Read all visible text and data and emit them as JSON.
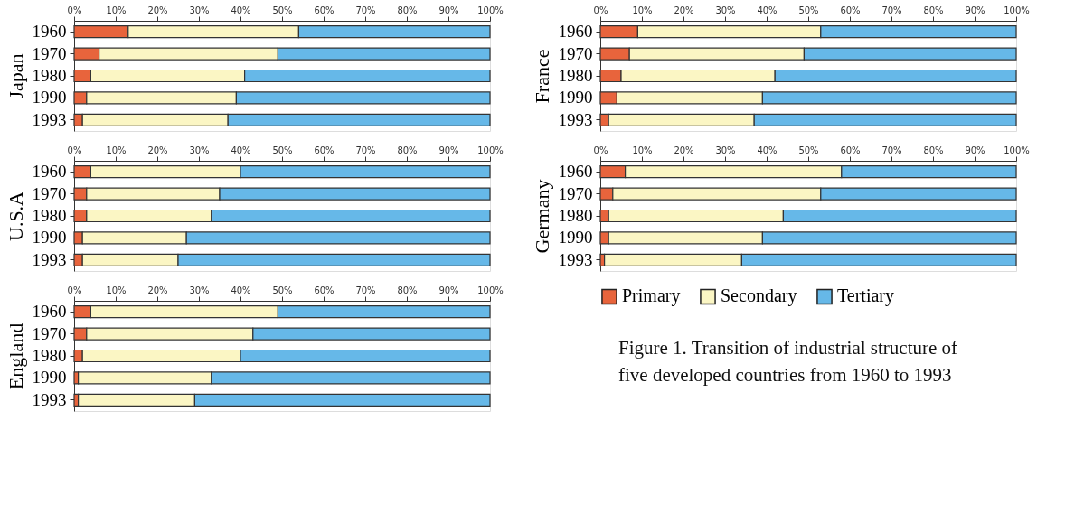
{
  "chart_data": [
    {
      "type": "bar",
      "orientation": "horizontal",
      "stacked": true,
      "ylabel": "Japan",
      "categories": [
        "1960",
        "1970",
        "1980",
        "1990",
        "1993"
      ],
      "xlim": [
        0,
        100
      ],
      "xticks": [
        {
          "value": 0,
          "label": "0%"
        },
        {
          "value": 10,
          "label": "10%"
        },
        {
          "value": 20,
          "label": "20%"
        },
        {
          "value": 30,
          "label": "30%"
        },
        {
          "value": 40,
          "label": "40%"
        },
        {
          "value": 50,
          "label": "50%"
        },
        {
          "value": 60,
          "label": "60%"
        },
        {
          "value": 70,
          "label": "70%"
        },
        {
          "value": 80,
          "label": "80%"
        },
        {
          "value": 90,
          "label": "90%"
        },
        {
          "value": 100,
          "label": "100%"
        }
      ],
      "grid": false,
      "legend": false,
      "series": [
        {
          "color": "#e8643c",
          "values": [
            13,
            6,
            4,
            3,
            2
          ]
        },
        {
          "color": "#fbf6c4",
          "values": [
            41,
            43,
            37,
            36,
            35
          ]
        },
        {
          "color": "#66b8e8",
          "values": [
            46,
            51,
            59,
            61,
            63
          ]
        }
      ]
    },
    {
      "type": "bar",
      "orientation": "horizontal",
      "stacked": true,
      "ylabel": "U.S.A",
      "categories": [
        "1960",
        "1970",
        "1980",
        "1990",
        "1993"
      ],
      "xlim": [
        0,
        100
      ],
      "xticks": [
        {
          "value": 0,
          "label": "0%"
        },
        {
          "value": 10,
          "label": "10%"
        },
        {
          "value": 20,
          "label": "20%"
        },
        {
          "value": 30,
          "label": "30%"
        },
        {
          "value": 40,
          "label": "40%"
        },
        {
          "value": 50,
          "label": "50%"
        },
        {
          "value": 60,
          "label": "60%"
        },
        {
          "value": 70,
          "label": "70%"
        },
        {
          "value": 80,
          "label": "80%"
        },
        {
          "value": 90,
          "label": "90%"
        },
        {
          "value": 100,
          "label": "100%"
        }
      ],
      "grid": false,
      "legend": false,
      "series": [
        {
          "color": "#e8643c",
          "values": [
            4,
            3,
            3,
            2,
            2
          ]
        },
        {
          "color": "#fbf6c4",
          "values": [
            36,
            32,
            30,
            25,
            23
          ]
        },
        {
          "color": "#66b8e8",
          "values": [
            60,
            65,
            67,
            73,
            75
          ]
        }
      ]
    },
    {
      "type": "bar",
      "orientation": "horizontal",
      "stacked": true,
      "ylabel": "England",
      "categories": [
        "1960",
        "1970",
        "1980",
        "1990",
        "1993"
      ],
      "xlim": [
        0,
        100
      ],
      "xticks": [
        {
          "value": 0,
          "label": "0%"
        },
        {
          "value": 10,
          "label": "10%"
        },
        {
          "value": 20,
          "label": "20%"
        },
        {
          "value": 30,
          "label": "30%"
        },
        {
          "value": 40,
          "label": "40%"
        },
        {
          "value": 50,
          "label": "50%"
        },
        {
          "value": 60,
          "label": "60%"
        },
        {
          "value": 70,
          "label": "70%"
        },
        {
          "value": 80,
          "label": "80%"
        },
        {
          "value": 90,
          "label": "90%"
        },
        {
          "value": 100,
          "label": "100%"
        }
      ],
      "grid": false,
      "legend": false,
      "series": [
        {
          "color": "#e8643c",
          "values": [
            4,
            3,
            2,
            1,
            1
          ]
        },
        {
          "color": "#fbf6c4",
          "values": [
            45,
            40,
            38,
            32,
            28
          ]
        },
        {
          "color": "#66b8e8",
          "values": [
            51,
            57,
            60,
            67,
            71
          ]
        }
      ]
    },
    {
      "type": "bar",
      "orientation": "horizontal",
      "stacked": true,
      "ylabel": "France",
      "categories": [
        "1960",
        "1970",
        "1980",
        "1990",
        "1993"
      ],
      "xlim": [
        0,
        100
      ],
      "xticks": [
        {
          "value": 0,
          "label": "0%"
        },
        {
          "value": 10,
          "label": "10%"
        },
        {
          "value": 20,
          "label": "20%"
        },
        {
          "value": 30,
          "label": "30%"
        },
        {
          "value": 40,
          "label": "40%"
        },
        {
          "value": 50,
          "label": "50%"
        },
        {
          "value": 60,
          "label": "60%"
        },
        {
          "value": 70,
          "label": "70%"
        },
        {
          "value": 80,
          "label": "80%"
        },
        {
          "value": 90,
          "label": "90%"
        },
        {
          "value": 100,
          "label": "100%"
        }
      ],
      "grid": false,
      "legend": false,
      "series": [
        {
          "color": "#e8643c",
          "values": [
            9,
            7,
            5,
            4,
            2
          ]
        },
        {
          "color": "#fbf6c4",
          "values": [
            44,
            42,
            37,
            35,
            35
          ]
        },
        {
          "color": "#66b8e8",
          "values": [
            47,
            51,
            58,
            61,
            63
          ]
        }
      ]
    },
    {
      "type": "bar",
      "orientation": "horizontal",
      "stacked": true,
      "ylabel": "Germany",
      "categories": [
        "1960",
        "1970",
        "1980",
        "1990",
        "1993"
      ],
      "xlim": [
        0,
        100
      ],
      "xticks": [
        {
          "value": 0,
          "label": "0%"
        },
        {
          "value": 10,
          "label": "10%"
        },
        {
          "value": 20,
          "label": "20%"
        },
        {
          "value": 30,
          "label": "30%"
        },
        {
          "value": 40,
          "label": "40%"
        },
        {
          "value": 50,
          "label": "50%"
        },
        {
          "value": 60,
          "label": "60%"
        },
        {
          "value": 70,
          "label": "70%"
        },
        {
          "value": 80,
          "label": "80%"
        },
        {
          "value": 90,
          "label": "90%"
        },
        {
          "value": 100,
          "label": "100%"
        }
      ],
      "grid": false,
      "legend": "bottom",
      "annotations": [
        "Figure 1. Transition of industrial structure of five developed countries from 1960 to 1993"
      ],
      "series": [
        {
          "name": "Primary",
          "color": "#e8643c",
          "values": [
            6,
            3,
            2,
            2,
            1
          ]
        },
        {
          "name": "Secondary",
          "color": "#fbf6c4",
          "values": [
            52,
            50,
            42,
            37,
            33
          ]
        },
        {
          "name": "Tertiary",
          "color": "#66b8e8",
          "values": [
            42,
            47,
            56,
            61,
            66
          ]
        }
      ]
    }
  ]
}
